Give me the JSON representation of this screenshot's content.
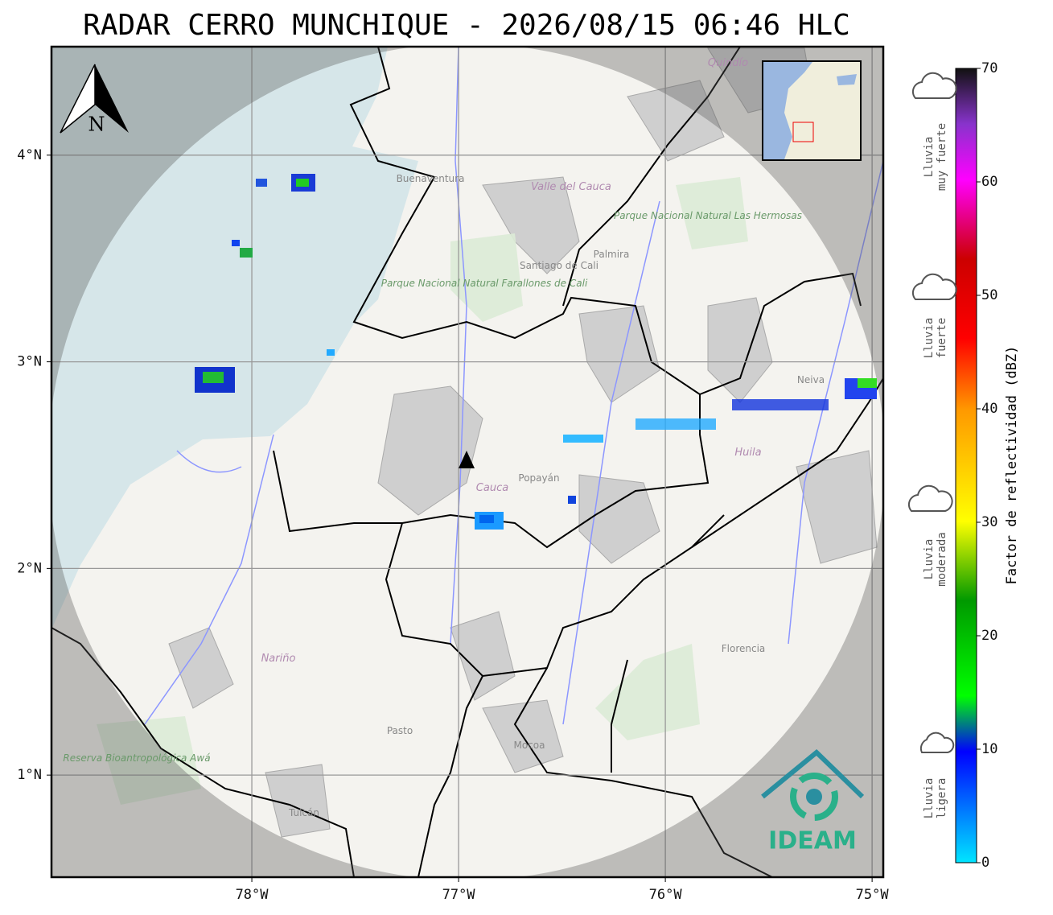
{
  "title": "RADAR CERRO MUNCHIQUE - 2026/08/15 06:46 HLC",
  "map": {
    "xlim": [
      -78.969,
      -74.946
    ],
    "ylim": [
      0.506,
      4.525
    ],
    "xticks": [
      {
        "value": -78,
        "label": "78°W"
      },
      {
        "value": -77,
        "label": "77°W"
      },
      {
        "value": -76,
        "label": "76°W"
      },
      {
        "value": -75,
        "label": "75°W"
      }
    ],
    "yticks": [
      {
        "value": 4,
        "label": "4°N"
      },
      {
        "value": 3,
        "label": "3°N"
      },
      {
        "value": 2,
        "label": "2°N"
      },
      {
        "value": 1,
        "label": "1°N"
      }
    ],
    "grid": true,
    "north": "N",
    "logo": "IDEAM",
    "places": [
      "Buenaventura",
      "Valle del Cauca",
      "Quindío",
      "Parque Nacional Natural Las Hermosas",
      "Palmira",
      "Santiago de Cali",
      "Parque Nacional Natural Farallones de Cali",
      "Neiva",
      "Huila",
      "Cauca",
      "Popayán",
      "Nariño",
      "Florencia",
      "Pasto",
      "Mocoa",
      "Tulcán",
      "Reserva Bioantropológica Awá"
    ]
  },
  "colorbar": {
    "label": "Factor de reflectividad (dBZ)",
    "lim": [
      0,
      70
    ],
    "ticks": [
      0,
      10,
      20,
      30,
      40,
      50,
      60,
      70
    ]
  },
  "legend_icons": [
    {
      "lines": [
        "Lluvia",
        "muy fuerte"
      ]
    },
    {
      "lines": [
        "Lluvia",
        "fuerte"
      ]
    },
    {
      "lines": [
        "Lluvia",
        "moderada"
      ]
    },
    {
      "lines": [
        "Lluvia",
        "ligera"
      ]
    }
  ]
}
